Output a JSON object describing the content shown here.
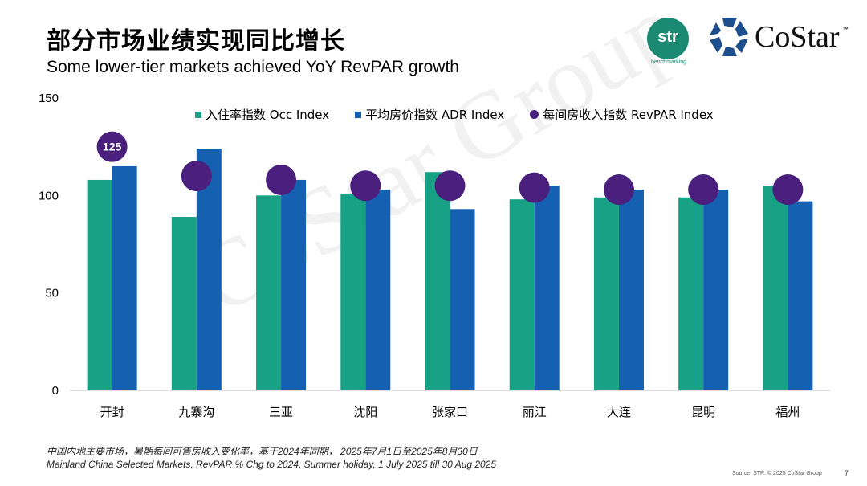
{
  "header": {
    "title": "部分市场业绩实现同比增长",
    "subtitle": "Some lower-tier markets achieved YoY RevPAR growth"
  },
  "logos": {
    "str_text": "str",
    "str_sub": "benchmarking",
    "costar_text": "CoStar",
    "costar_tm": "™",
    "watermark": "CoStar Group"
  },
  "colors": {
    "occ": "#17a286",
    "adr": "#1560b0",
    "revpar": "#4a1f7e"
  },
  "chart_data": {
    "type": "bar",
    "categories": [
      "开封",
      "九寨沟",
      "三亚",
      "沈阳",
      "张家口",
      "丽江",
      "大连",
      "昆明",
      "福州"
    ],
    "series": [
      {
        "name": "入住率指数 Occ Index",
        "type": "bar",
        "values": [
          108,
          89,
          100,
          101,
          112,
          98,
          99,
          99,
          105
        ]
      },
      {
        "name": "平均房价指数 ADR Index",
        "type": "bar",
        "values": [
          115,
          124,
          108,
          103,
          93,
          105,
          103,
          103,
          97
        ]
      },
      {
        "name": "每间房收入指数 RevPAR Index",
        "type": "scatter",
        "values": [
          125,
          110,
          108,
          105,
          105,
          104,
          103,
          103,
          103
        ]
      }
    ],
    "data_labels": [
      {
        "category": "开封",
        "series": "每间房收入指数 RevPAR Index",
        "text": "125"
      }
    ],
    "yticks": [
      "0",
      "50",
      "100",
      "150"
    ],
    "ylim": [
      0,
      150
    ],
    "grid": false,
    "legend": "top"
  },
  "footer": {
    "note_cn": "中国内地主要市场，暑期每间可售房收入变化率，基于2024年同期， 2025年7月1日至2025年8月30日",
    "note_en": "Mainland China Selected Markets, RevPAR % Chg to 2024, Summer holiday, 1 July 2025 till 30 Aug 2025",
    "source": "Source: STR. © 2025 CoStar Group",
    "page": "7"
  }
}
